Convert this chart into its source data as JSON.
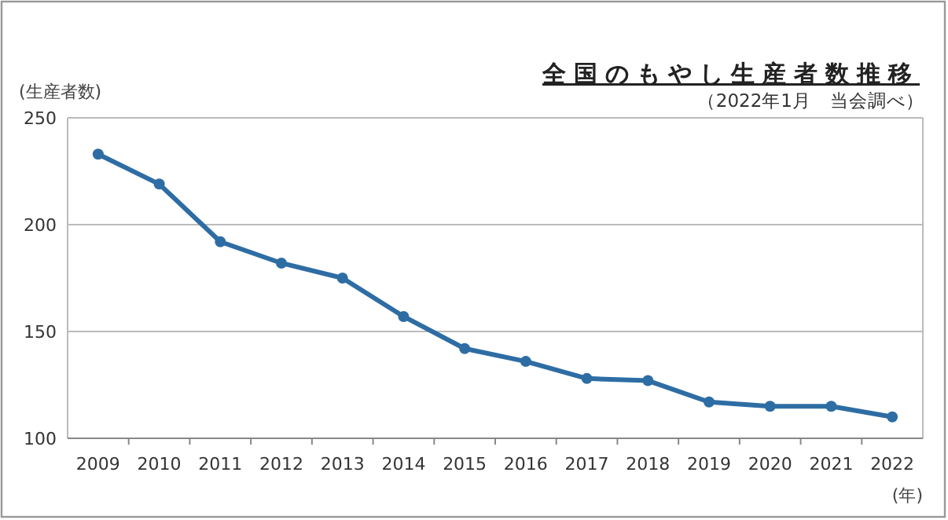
{
  "chart_data": {
    "type": "line",
    "title": "全国のもやし生産者数推移",
    "annotations": [
      "（2022年1月　当会調べ）"
    ],
    "ylabel": "(生産者数)",
    "xlabel": "(年)",
    "categories": [
      "2009",
      "2010",
      "2011",
      "2012",
      "2013",
      "2014",
      "2015",
      "2016",
      "2017",
      "2018",
      "2019",
      "2020",
      "2021",
      "2022"
    ],
    "series": [
      {
        "color": "#2e6da4",
        "values": [
          233,
          219,
          192,
          182,
          175,
          157,
          142,
          136,
          128,
          127,
          117,
          115,
          115,
          110
        ]
      }
    ],
    "ylim": [
      100,
      250
    ],
    "yticks": [
      100,
      150,
      200,
      250
    ],
    "grid": "y",
    "marker": "circle",
    "line_style": "solid"
  }
}
